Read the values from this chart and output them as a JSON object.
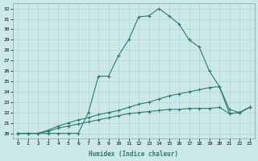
{
  "xlabel": "Humidex (Indice chaleur)",
  "background_color": "#cce8e8",
  "line_color": "#2d7d6f",
  "xlim": [
    -0.5,
    23.5
  ],
  "ylim": [
    19.5,
    32.5
  ],
  "xticks": [
    0,
    1,
    2,
    3,
    4,
    5,
    6,
    7,
    8,
    9,
    10,
    11,
    12,
    13,
    14,
    15,
    16,
    17,
    18,
    19,
    20,
    21,
    22,
    23
  ],
  "yticks": [
    20,
    21,
    22,
    23,
    24,
    25,
    26,
    27,
    28,
    29,
    30,
    31,
    32
  ],
  "series": [
    {
      "x": [
        0,
        1,
        2,
        3,
        4,
        5,
        6,
        7,
        8,
        9,
        10,
        11,
        12,
        13,
        14,
        15,
        16,
        17,
        18,
        19,
        20,
        21,
        22,
        23
      ],
      "y": [
        20,
        20,
        20,
        20,
        20,
        20,
        20,
        22.0,
        25.5,
        25.5,
        27.5,
        29.0,
        31.2,
        31.3,
        32.0,
        31.3,
        30.5,
        29.0,
        28.3,
        26.0,
        24.5,
        22.3,
        22.0,
        22.5
      ]
    },
    {
      "x": [
        0,
        1,
        2,
        3,
        4,
        5,
        6,
        7,
        8,
        9,
        10,
        11,
        12,
        13,
        14,
        15,
        16,
        17,
        18,
        19,
        20,
        21,
        22,
        23
      ],
      "y": [
        20,
        20,
        20,
        20.3,
        20.7,
        21.0,
        21.3,
        21.5,
        21.8,
        22.0,
        22.2,
        22.5,
        22.8,
        23.0,
        23.3,
        23.6,
        23.8,
        24.0,
        24.2,
        24.4,
        24.5,
        21.9,
        22.0,
        22.5
      ]
    },
    {
      "x": [
        0,
        1,
        2,
        3,
        4,
        5,
        6,
        7,
        8,
        9,
        10,
        11,
        12,
        13,
        14,
        15,
        16,
        17,
        18,
        19,
        20,
        21,
        22,
        23
      ],
      "y": [
        20,
        20,
        20,
        20.2,
        20.5,
        20.7,
        20.9,
        21.1,
        21.3,
        21.5,
        21.7,
        21.9,
        22.0,
        22.1,
        22.2,
        22.3,
        22.3,
        22.4,
        22.4,
        22.4,
        22.5,
        21.9,
        22.0,
        22.5
      ]
    }
  ]
}
